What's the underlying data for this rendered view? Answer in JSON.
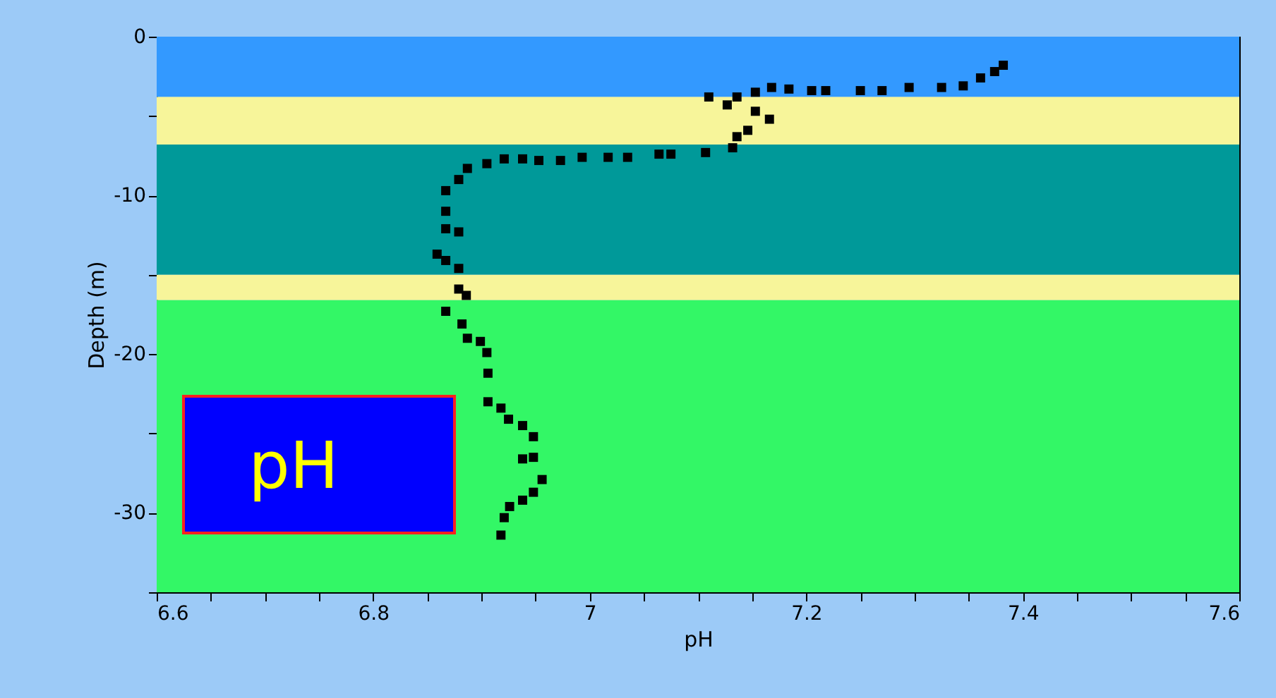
{
  "chart_data": {
    "type": "scatter",
    "xlabel": "pH",
    "ylabel": "Depth (m)",
    "x": [
      7.382,
      7.374,
      7.361,
      7.345,
      7.325,
      7.295,
      7.27,
      7.25,
      7.218,
      7.205,
      7.184,
      7.168,
      7.153,
      7.136,
      7.11,
      7.127,
      7.153,
      7.166,
      7.146,
      7.136,
      7.132,
      7.107,
      7.075,
      7.064,
      7.035,
      7.017,
      6.993,
      6.973,
      6.953,
      6.938,
      6.921,
      6.905,
      6.887,
      6.879,
      6.867,
      6.867,
      6.867,
      6.879,
      6.859,
      6.867,
      6.879,
      6.879,
      6.886,
      6.867,
      6.882,
      6.887,
      6.899,
      6.905,
      6.906,
      6.906,
      6.918,
      6.925,
      6.938,
      6.948,
      6.938,
      6.948,
      6.956,
      6.948,
      6.938,
      6.926,
      6.921,
      6.918
    ],
    "series": [
      {
        "color": "#000000",
        "values": [
          -1.8,
          -2.2,
          -2.6,
          -3.1,
          -3.2,
          -3.2,
          -3.4,
          -3.4,
          -3.4,
          -3.4,
          -3.3,
          -3.2,
          -3.5,
          -3.8,
          -3.8,
          -4.3,
          -4.7,
          -5.2,
          -5.9,
          -6.3,
          -7.0,
          -7.3,
          -7.4,
          -7.4,
          -7.6,
          -7.6,
          -7.6,
          -7.8,
          -7.8,
          -7.7,
          -7.7,
          -8.0,
          -8.3,
          -9.0,
          -9.7,
          -11.0,
          -12.1,
          -12.3,
          -13.7,
          -14.1,
          -14.6,
          -15.9,
          -16.3,
          -17.3,
          -18.1,
          -19.0,
          -19.2,
          -19.9,
          -21.2,
          -23.0,
          -23.4,
          -24.1,
          -24.5,
          -25.2,
          -26.6,
          -26.5,
          -27.9,
          -28.7,
          -29.2,
          -29.6,
          -30.3,
          -31.4
        ]
      }
    ],
    "marker": "square",
    "xlim": [
      6.6,
      7.6
    ],
    "xticks": [
      6.6,
      {
        "value": 6.65,
        "label": null
      },
      {
        "value": 6.7,
        "label": null
      },
      {
        "value": 6.75,
        "label": null
      },
      6.8,
      {
        "value": 6.85,
        "label": null
      },
      {
        "value": 6.9,
        "label": null
      },
      {
        "value": 6.95,
        "label": null
      },
      7,
      {
        "value": 7.05,
        "label": null
      },
      {
        "value": 7.1,
        "label": null
      },
      {
        "value": 7.15,
        "label": null
      },
      7.2,
      {
        "value": 7.25,
        "label": null
      },
      {
        "value": 7.3,
        "label": null
      },
      {
        "value": 7.35,
        "label": null
      },
      7.4,
      {
        "value": 7.45,
        "label": null
      },
      {
        "value": 7.5,
        "label": null
      },
      {
        "value": 7.55,
        "label": null
      },
      7.6
    ],
    "ylim": [
      -35,
      0
    ],
    "yticks": [
      {
        "value": -35,
        "label": null
      },
      -30,
      {
        "value": -25,
        "label": null
      },
      -20,
      {
        "value": -15,
        "label": null
      },
      -10,
      {
        "value": -5,
        "label": null
      },
      0
    ],
    "bands": [
      {
        "axis": "y",
        "from": 0,
        "to": -3.8,
        "color": "#3399ff"
      },
      {
        "axis": "y",
        "from": -3.8,
        "to": -6.8,
        "color": "#f7f59a"
      },
      {
        "axis": "y",
        "from": -6.8,
        "to": -15,
        "color": "#009999"
      },
      {
        "axis": "y",
        "from": -15,
        "to": -16.6,
        "color": "#f7f59a"
      },
      {
        "axis": "y",
        "from": -16.6,
        "to": -35,
        "color": "#33f766"
      }
    ],
    "annotations": [
      "pH"
    ],
    "grid": false
  }
}
